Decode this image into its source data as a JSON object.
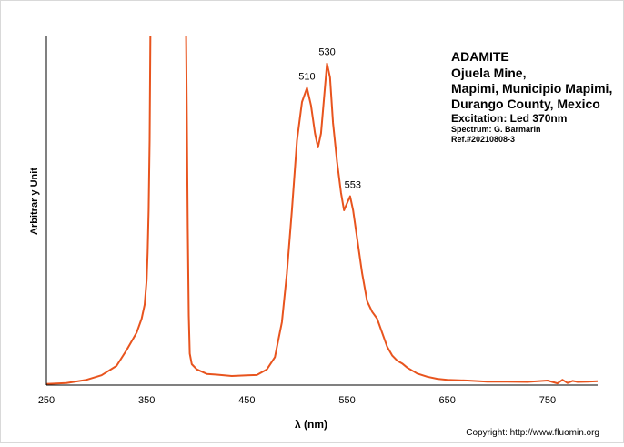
{
  "chart_data": {
    "type": "line",
    "title_lines": [
      "ADAMITE",
      "Ojuela Mine,",
      "Mapimi, Municipio Mapimi,",
      "Durango County, Mexico"
    ],
    "excitation": "Excitation: Led 370nm",
    "spectrum_credit": "Spectrum: G. Barmarin",
    "reference": "Ref.#20210808-3",
    "xlabel": "λ (nm)",
    "ylabel": "Arbitrar y Unit",
    "xlim": [
      250,
      800
    ],
    "ylim": [
      0,
      100
    ],
    "x_ticks": [
      "250",
      "350",
      "450",
      "550",
      "650",
      "750"
    ],
    "grid": false,
    "series_color": "#E8541E",
    "peak_labels": [
      {
        "x": 510,
        "y": 85,
        "label": "510"
      },
      {
        "x": 530,
        "y": 92,
        "label": "530"
      },
      {
        "x": 553,
        "y": 54,
        "label": "553"
      }
    ],
    "series": [
      {
        "values": [
          [
            250,
            0.3
          ],
          [
            270,
            0.6
          ],
          [
            290,
            1.5
          ],
          [
            305,
            2.8
          ],
          [
            320,
            5.5
          ],
          [
            330,
            10
          ],
          [
            340,
            15
          ],
          [
            345,
            19
          ],
          [
            348,
            23
          ],
          [
            350,
            30
          ],
          [
            351,
            38
          ],
          [
            352,
            50
          ],
          [
            353,
            70
          ],
          [
            354,
            110
          ],
          [
            389,
            110
          ],
          [
            390,
            80
          ],
          [
            391,
            45
          ],
          [
            392,
            20
          ],
          [
            393,
            9
          ],
          [
            395,
            6
          ],
          [
            400,
            4.5
          ],
          [
            410,
            3.2
          ],
          [
            420,
            3
          ],
          [
            435,
            2.6
          ],
          [
            450,
            2.8
          ],
          [
            460,
            2.9
          ],
          [
            470,
            4.5
          ],
          [
            478,
            8
          ],
          [
            485,
            18
          ],
          [
            490,
            32
          ],
          [
            495,
            50
          ],
          [
            500,
            70
          ],
          [
            505,
            81
          ],
          [
            510,
            85
          ],
          [
            514,
            80
          ],
          [
            518,
            72
          ],
          [
            521,
            68
          ],
          [
            524,
            72
          ],
          [
            527,
            82
          ],
          [
            530,
            92
          ],
          [
            533,
            88
          ],
          [
            536,
            75
          ],
          [
            540,
            64
          ],
          [
            544,
            55
          ],
          [
            547,
            50
          ],
          [
            550,
            52
          ],
          [
            553,
            54
          ],
          [
            556,
            50
          ],
          [
            560,
            42
          ],
          [
            565,
            32
          ],
          [
            570,
            24
          ],
          [
            575,
            21
          ],
          [
            580,
            19
          ],
          [
            585,
            15
          ],
          [
            590,
            11
          ],
          [
            595,
            8.5
          ],
          [
            600,
            7
          ],
          [
            605,
            6.2
          ],
          [
            610,
            5
          ],
          [
            620,
            3.3
          ],
          [
            630,
            2.4
          ],
          [
            640,
            1.8
          ],
          [
            650,
            1.5
          ],
          [
            670,
            1.3
          ],
          [
            690,
            1.0
          ],
          [
            710,
            1.0
          ],
          [
            730,
            0.9
          ],
          [
            750,
            1.3
          ],
          [
            760,
            0.5
          ],
          [
            765,
            1.5
          ],
          [
            770,
            0.6
          ],
          [
            775,
            1.2
          ],
          [
            780,
            0.9
          ],
          [
            790,
            1.0
          ],
          [
            800,
            1.1
          ]
        ]
      }
    ]
  },
  "footer": {
    "copyright": "Copyright: http://www.fluomin.org"
  }
}
